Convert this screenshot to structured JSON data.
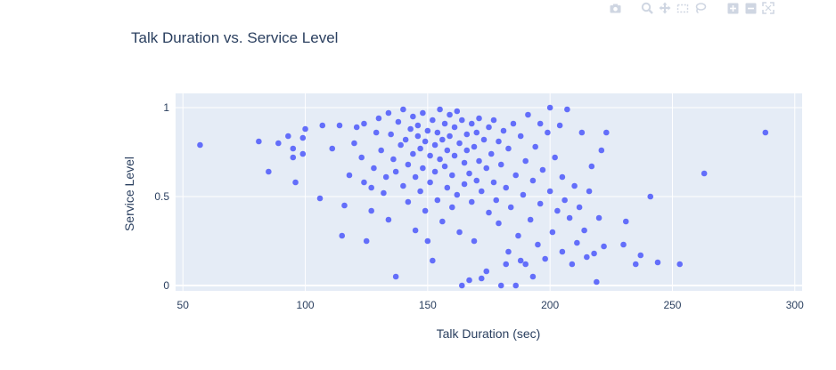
{
  "chart_data": {
    "type": "scatter",
    "title": "Talk Duration vs. Service Level",
    "xlabel": "Talk Duration (sec)",
    "ylabel": "Service Level",
    "xlim": [
      47,
      303
    ],
    "ylim": [
      -0.03,
      1.08
    ],
    "xticks": [
      50,
      100,
      150,
      200,
      250,
      300
    ],
    "yticks": [
      0,
      0.5,
      1
    ],
    "ytick_labels": [
      "0",
      "0.5",
      "1"
    ],
    "grid": true,
    "marker_color": "#636efa",
    "background_color": "#e5ecf6",
    "series": [
      {
        "points": [
          [
            57,
            0.79
          ],
          [
            81,
            0.81
          ],
          [
            85,
            0.64
          ],
          [
            89,
            0.8
          ],
          [
            93,
            0.84
          ],
          [
            95,
            0.72
          ],
          [
            95,
            0.77
          ],
          [
            96,
            0.58
          ],
          [
            99,
            0.74
          ],
          [
            99,
            0.83
          ],
          [
            100,
            0.88
          ],
          [
            106,
            0.49
          ],
          [
            107,
            0.9
          ],
          [
            111,
            0.77
          ],
          [
            114,
            0.9
          ],
          [
            115,
            0.28
          ],
          [
            116,
            0.45
          ],
          [
            118,
            0.62
          ],
          [
            120,
            0.8
          ],
          [
            121,
            0.89
          ],
          [
            123,
            0.72
          ],
          [
            124,
            0.58
          ],
          [
            124,
            0.91
          ],
          [
            125,
            0.25
          ],
          [
            127,
            0.42
          ],
          [
            127,
            0.55
          ],
          [
            128,
            0.66
          ],
          [
            129,
            0.86
          ],
          [
            130,
            0.94
          ],
          [
            131,
            0.76
          ],
          [
            132,
            0.52
          ],
          [
            133,
            0.61
          ],
          [
            134,
            0.97
          ],
          [
            134,
            0.37
          ],
          [
            135,
            0.85
          ],
          [
            136,
            0.71
          ],
          [
            137,
            0.64
          ],
          [
            137,
            0.05
          ],
          [
            138,
            0.92
          ],
          [
            139,
            0.79
          ],
          [
            140,
            0.56
          ],
          [
            140,
            0.99
          ],
          [
            141,
            0.82
          ],
          [
            142,
            0.68
          ],
          [
            142,
            0.47
          ],
          [
            143,
            0.88
          ],
          [
            144,
            0.95
          ],
          [
            144,
            0.74
          ],
          [
            145,
            0.61
          ],
          [
            145,
            0.31
          ],
          [
            146,
            0.84
          ],
          [
            146,
            0.9
          ],
          [
            147,
            0.77
          ],
          [
            147,
            0.53
          ],
          [
            148,
            0.97
          ],
          [
            148,
            0.66
          ],
          [
            149,
            0.81
          ],
          [
            149,
            0.42
          ],
          [
            150,
            0.25
          ],
          [
            150,
            0.87
          ],
          [
            151,
            0.73
          ],
          [
            151,
            0.58
          ],
          [
            152,
            0.14
          ],
          [
            152,
            0.93
          ],
          [
            153,
            0.79
          ],
          [
            153,
            0.64
          ],
          [
            154,
            0.86
          ],
          [
            154,
            0.48
          ],
          [
            155,
            0.99
          ],
          [
            155,
            0.71
          ],
          [
            156,
            0.82
          ],
          [
            156,
            0.36
          ],
          [
            157,
            0.91
          ],
          [
            157,
            0.67
          ],
          [
            158,
            0.76
          ],
          [
            158,
            0.55
          ],
          [
            159,
            0.96
          ],
          [
            159,
            0.84
          ],
          [
            160,
            0.62
          ],
          [
            160,
            0.44
          ],
          [
            161,
            0.89
          ],
          [
            161,
            0.73
          ],
          [
            162,
            0.98
          ],
          [
            162,
            0.51
          ],
          [
            163,
            0.8
          ],
          [
            163,
            0.3
          ],
          [
            164,
            0.0
          ],
          [
            164,
            0.93
          ],
          [
            165,
            0.69
          ],
          [
            165,
            0.57
          ],
          [
            166,
            0.85
          ],
          [
            166,
            0.76
          ],
          [
            167,
            0.03
          ],
          [
            167,
            0.63
          ],
          [
            168,
            0.91
          ],
          [
            168,
            0.47
          ],
          [
            169,
            0.78
          ],
          [
            169,
            0.25
          ],
          [
            170,
            0.86
          ],
          [
            170,
            0.59
          ],
          [
            171,
            0.94
          ],
          [
            171,
            0.7
          ],
          [
            172,
            0.04
          ],
          [
            172,
            0.53
          ],
          [
            173,
            0.82
          ],
          [
            174,
            0.08
          ],
          [
            174,
            0.66
          ],
          [
            175,
            0.89
          ],
          [
            175,
            0.41
          ],
          [
            176,
            0.74
          ],
          [
            177,
            0.58
          ],
          [
            177,
            0.93
          ],
          [
            178,
            0.48
          ],
          [
            179,
            0.81
          ],
          [
            179,
            0.35
          ],
          [
            180,
            0.0
          ],
          [
            180,
            0.68
          ],
          [
            181,
            0.87
          ],
          [
            182,
            0.12
          ],
          [
            182,
            0.55
          ],
          [
            183,
            0.19
          ],
          [
            183,
            0.77
          ],
          [
            184,
            0.44
          ],
          [
            185,
            0.91
          ],
          [
            186,
            0.62
          ],
          [
            186,
            0.0
          ],
          [
            187,
            0.28
          ],
          [
            188,
            0.84
          ],
          [
            188,
            0.14
          ],
          [
            189,
            0.51
          ],
          [
            190,
            0.7
          ],
          [
            190,
            0.12
          ],
          [
            191,
            0.96
          ],
          [
            192,
            0.37
          ],
          [
            193,
            0.59
          ],
          [
            193,
            0.05
          ],
          [
            194,
            0.78
          ],
          [
            195,
            0.23
          ],
          [
            196,
            0.46
          ],
          [
            196,
            0.91
          ],
          [
            197,
            0.65
          ],
          [
            198,
            0.15
          ],
          [
            199,
            0.86
          ],
          [
            200,
            0.53
          ],
          [
            200,
            1.0
          ],
          [
            201,
            0.3
          ],
          [
            202,
            0.72
          ],
          [
            203,
            0.42
          ],
          [
            204,
            0.9
          ],
          [
            205,
            0.61
          ],
          [
            205,
            0.19
          ],
          [
            206,
            0.48
          ],
          [
            207,
            0.99
          ],
          [
            208,
            0.38
          ],
          [
            209,
            0.12
          ],
          [
            210,
            0.56
          ],
          [
            211,
            0.24
          ],
          [
            212,
            0.44
          ],
          [
            213,
            0.86
          ],
          [
            214,
            0.31
          ],
          [
            215,
            0.16
          ],
          [
            216,
            0.53
          ],
          [
            217,
            0.67
          ],
          [
            218,
            0.18
          ],
          [
            219,
            0.02
          ],
          [
            220,
            0.38
          ],
          [
            221,
            0.76
          ],
          [
            222,
            0.22
          ],
          [
            223,
            0.86
          ],
          [
            230,
            0.23
          ],
          [
            231,
            0.36
          ],
          [
            235,
            0.12
          ],
          [
            237,
            0.17
          ],
          [
            241,
            0.5
          ],
          [
            244,
            0.13
          ],
          [
            253,
            0.12
          ],
          [
            263,
            0.63
          ],
          [
            288,
            0.86
          ]
        ]
      }
    ]
  },
  "modebar": {
    "icons": [
      "camera-icon",
      "zoom-icon",
      "pan-icon",
      "box-select-icon",
      "lasso-icon",
      "zoom-in-icon",
      "zoom-out-icon",
      "autoscale-icon"
    ]
  }
}
